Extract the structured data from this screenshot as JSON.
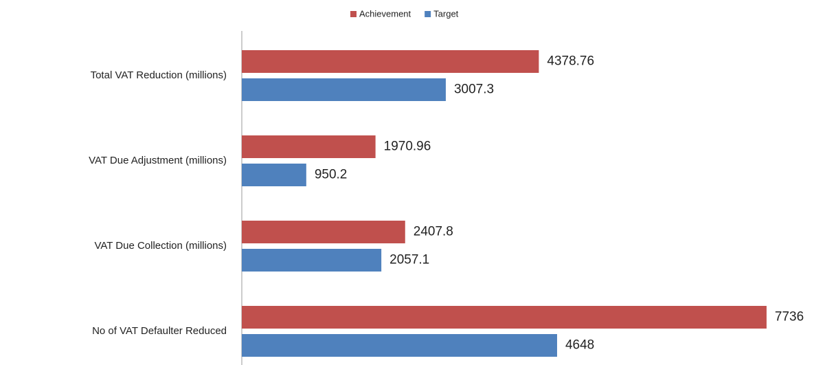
{
  "chart_data": {
    "type": "bar",
    "orientation": "horizontal",
    "categories": [
      "Total VAT  Reduction (millions)",
      "VAT  Due Adjustment (millions)",
      "VAT Due Collection (millions)",
      "No of VAT Defaulter Reduced"
    ],
    "series": [
      {
        "name": "Achievement",
        "color": "#c0504d",
        "values": [
          4378.76,
          1970.96,
          2407.8,
          7736
        ]
      },
      {
        "name": "Target",
        "color": "#4f81bd",
        "values": [
          3007.3,
          950.2,
          2057.1,
          4648
        ]
      }
    ],
    "xlim": [
      0,
      8000
    ],
    "legend": "top"
  }
}
